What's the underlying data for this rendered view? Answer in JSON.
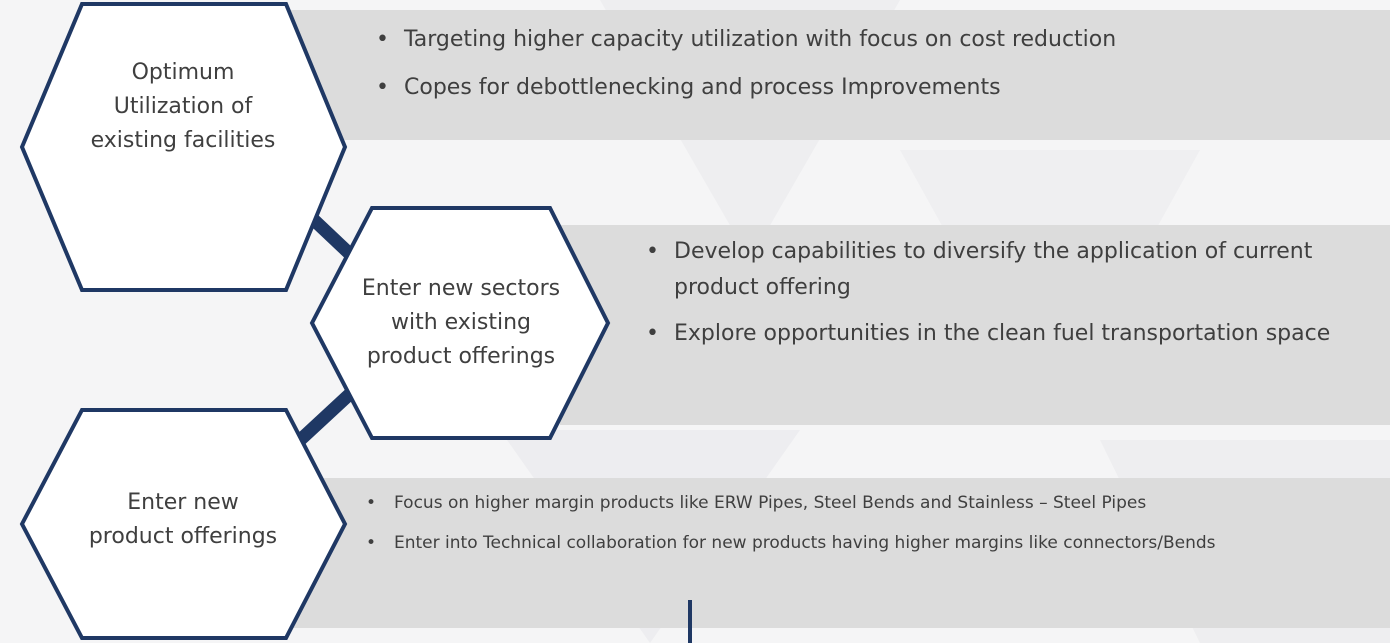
{
  "nodes": [
    {
      "label": [
        "Optimum",
        "Utilization of",
        "existing facilities"
      ],
      "bullets": [
        "Targeting higher capacity utilization with focus on cost reduction",
        "Copes for debottlenecking and process Improvements"
      ]
    },
    {
      "label": [
        "Enter new sectors",
        "with existing",
        "product offerings"
      ],
      "bullets": [
        "Develop capabilities to diversify the application of current product offering",
        "Explore opportunities in the clean fuel transportation space"
      ]
    },
    {
      "label": [
        "Enter new",
        "product offerings"
      ],
      "bullets": [
        "Focus on higher margin products like ERW Pipes, Steel Bends and Stainless – Steel Pipes",
        "Enter into Technical collaboration for new products having higher margins like connectors/Bends"
      ]
    }
  ]
}
